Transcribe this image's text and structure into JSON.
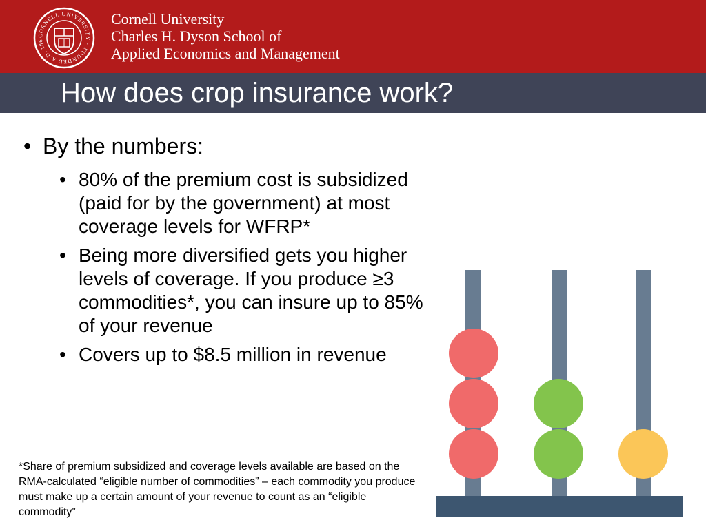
{
  "header": {
    "university": "Cornell University",
    "school_line1": "Charles H. Dyson School of",
    "school_line2": "Applied Economics and Management",
    "seal": {
      "ring_text": "CORNELL UNIVERSITY · FOUNDED A.D. 1865 ·"
    }
  },
  "slide": {
    "title": "How does crop insurance work?",
    "main_bullet": "By the numbers:",
    "bullet_glyph": "•",
    "sub_bullets": [
      "80% of the premium cost is subsidized (paid for by the government) at most coverage levels for WFRP*",
      "Being more diversified gets you higher levels of coverage. If you produce ≥3 commodities*, you can insure up to 85% of your revenue",
      "Covers up to $8.5 million in revenue"
    ],
    "footnote": "*Share of premium subsidized and coverage levels available are based on the RMA-calculated “eligible number of commodities” – each commodity you produce must make up a certain amount of your revenue to count as an “eligible commodity”"
  },
  "colors": {
    "brand_red": "#b31b1b",
    "title_band": "#3f4457",
    "rod": "#687c91",
    "base": "#3d5670",
    "bead_red": "#f06a6a",
    "bead_green": "#83c44c",
    "bead_yellow": "#fbc658"
  },
  "abacus": {
    "rods": [
      {
        "beads": 3,
        "color": "bead_red"
      },
      {
        "beads": 2,
        "color": "bead_green"
      },
      {
        "beads": 1,
        "color": "bead_yellow"
      }
    ]
  }
}
